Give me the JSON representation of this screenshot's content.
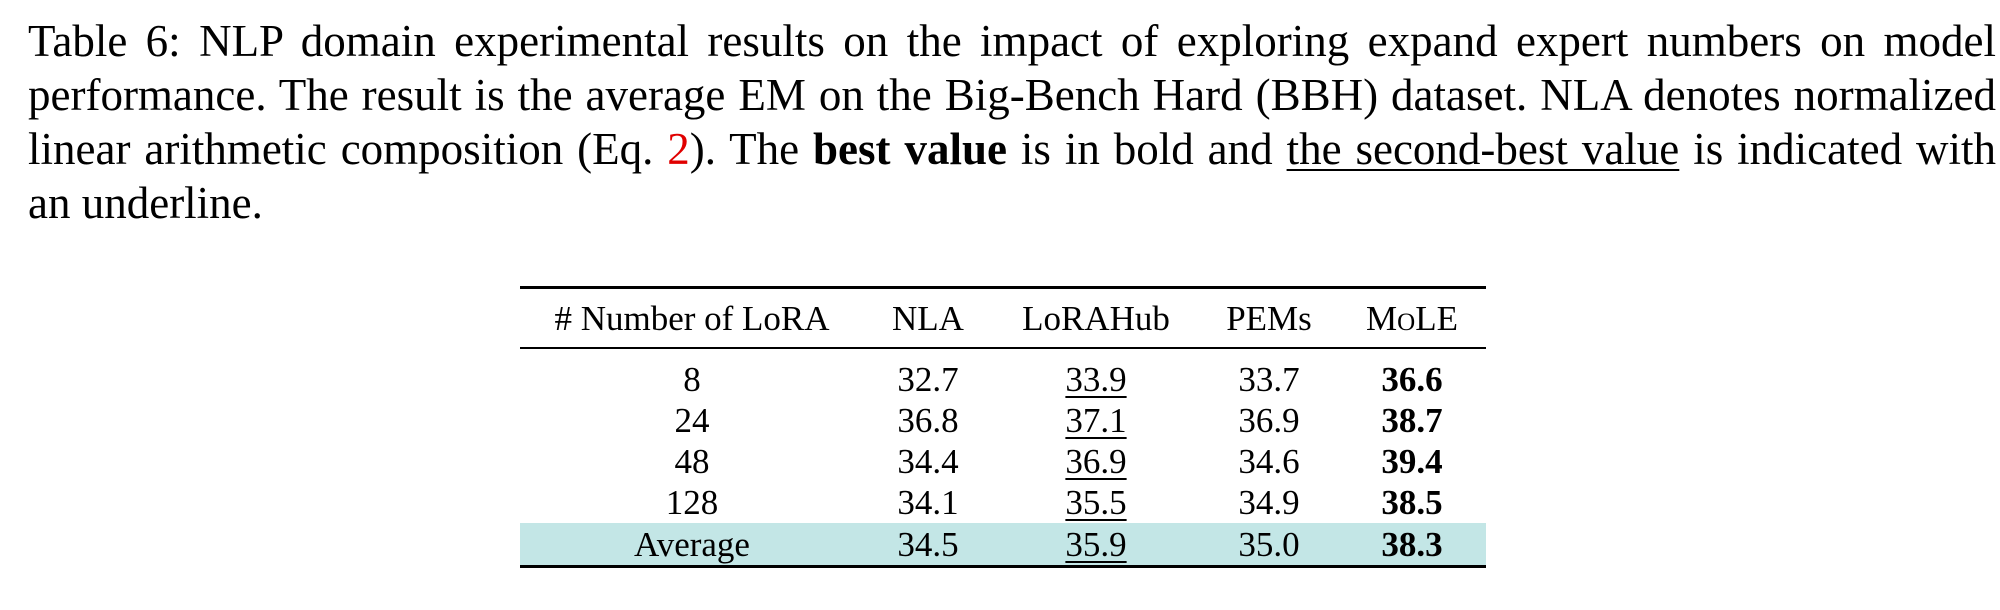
{
  "caption": {
    "part1": "Table 6: NLP domain experimental results on the impact of exploring expand expert numbers on model performance. The result is the average EM on the Big-Bench Hard (BBH) dataset. NLA denotes normalized linear arithmetic composition (Eq. ",
    "eq_ref": "2",
    "part2": "). The ",
    "best_text": "best value",
    "part3": " is in bold and ",
    "second_text": "the second-best value",
    "part4": " is indicated with an underline."
  },
  "table": {
    "headers": [
      "# Number of LoRA",
      "NLA",
      "LoRAHub",
      "PEMs",
      "MoLE"
    ],
    "rows": [
      [
        "8",
        "32.7",
        "33.9",
        "33.7",
        "36.6"
      ],
      [
        "24",
        "36.8",
        "37.1",
        "36.9",
        "38.7"
      ],
      [
        "48",
        "34.4",
        "36.9",
        "34.6",
        "39.4"
      ],
      [
        "128",
        "34.1",
        "35.5",
        "34.9",
        "38.5"
      ],
      [
        "Average",
        "34.5",
        "35.9",
        "35.0",
        "38.3"
      ]
    ],
    "best_column": "MoLE",
    "second_best_column": "LoRAHub",
    "highlight_row_color": "#c3e6e6",
    "ref_color": "#e00000"
  }
}
